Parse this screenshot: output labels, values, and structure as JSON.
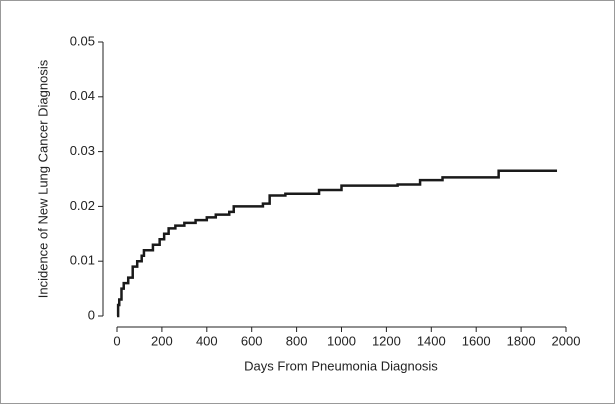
{
  "chart_data": {
    "type": "line",
    "drawstyle": "steps-post",
    "xlabel": "Days From Pneumonia Diagnosis",
    "ylabel": "Incidence of New Lung Cancer Diagnosis",
    "series": [
      {
        "color": "#1a1a1a",
        "x": [
          0,
          5,
          10,
          20,
          30,
          50,
          70,
          90,
          110,
          120,
          160,
          190,
          210,
          230,
          260,
          300,
          350,
          400,
          440,
          500,
          520,
          650,
          680,
          750,
          900,
          1000,
          1250,
          1350,
          1450,
          1700,
          1960
        ],
        "values": [
          0.0,
          0.002,
          0.003,
          0.005,
          0.006,
          0.007,
          0.009,
          0.01,
          0.011,
          0.012,
          0.013,
          0.014,
          0.015,
          0.016,
          0.0165,
          0.017,
          0.0175,
          0.018,
          0.0185,
          0.019,
          0.02,
          0.0205,
          0.022,
          0.0223,
          0.023,
          0.0238,
          0.024,
          0.0248,
          0.0253,
          0.0265,
          0.0265
        ]
      }
    ],
    "xlim": [
      0,
      2000
    ],
    "xticks": [
      0,
      200,
      400,
      600,
      800,
      1000,
      1200,
      1400,
      1600,
      1800,
      2000
    ],
    "ylim": [
      0,
      0.05
    ],
    "yticks": [
      0,
      0.01,
      0.02,
      0.03,
      0.04,
      0.05
    ]
  }
}
